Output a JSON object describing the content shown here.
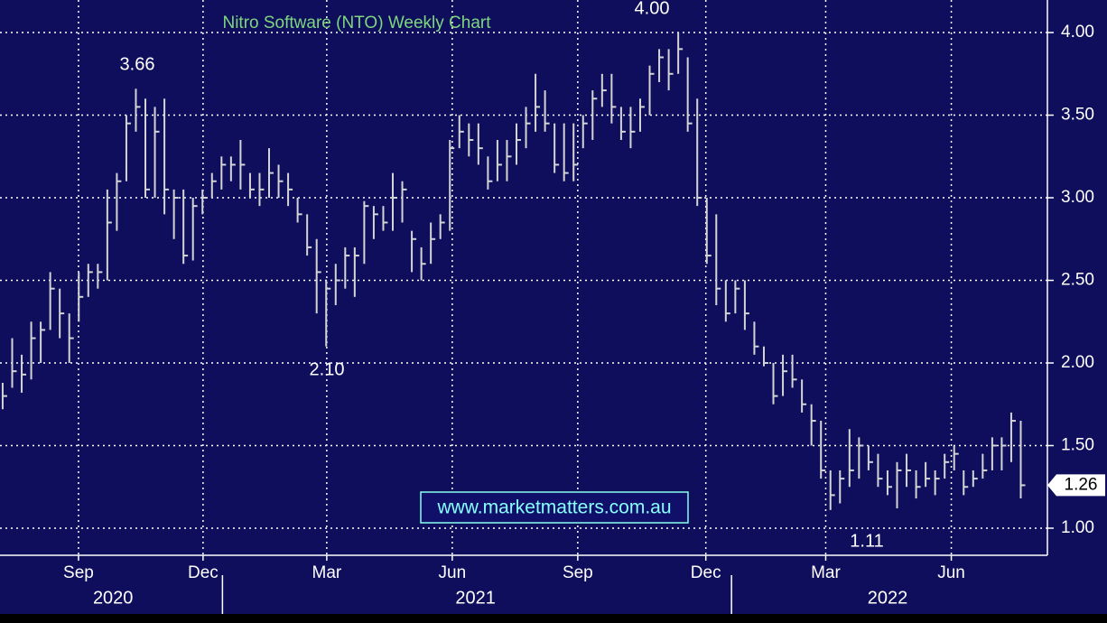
{
  "chart_data": {
    "type": "hlc",
    "title": "Nitro Software (NTO) Weekly Chart",
    "watermark": "www.marketmatters.com.au",
    "annotations": [
      "3.66",
      "2.10",
      "4.00",
      "1.11"
    ],
    "color": "#d4d4d4",
    "grid": true,
    "x": [
      0,
      1,
      2,
      3,
      4,
      5,
      6,
      7,
      8,
      9,
      10,
      11,
      12,
      13,
      14,
      15,
      16,
      17,
      18,
      19,
      20,
      21,
      22,
      23,
      24,
      25,
      26,
      27,
      28,
      29,
      30,
      31,
      32,
      33,
      34,
      35,
      36,
      37,
      38,
      39,
      40,
      41,
      42,
      43,
      44,
      45,
      46,
      47,
      48,
      49,
      50,
      51,
      52,
      53,
      54,
      55,
      56,
      57,
      58,
      59,
      60,
      61,
      62,
      63,
      64,
      65,
      66,
      67,
      68,
      69,
      70,
      71,
      72,
      73,
      74,
      75,
      76,
      77,
      78,
      79,
      80,
      81,
      82,
      83,
      84,
      85,
      86,
      87,
      88,
      89,
      90,
      91,
      92,
      93,
      94,
      95,
      96,
      97,
      98,
      99,
      100,
      101,
      102,
      103,
      104,
      105,
      106,
      107
    ],
    "high": [
      1.88,
      2.15,
      2.05,
      2.25,
      2.25,
      2.55,
      2.45,
      2.3,
      2.55,
      2.6,
      2.6,
      3.05,
      3.15,
      3.5,
      3.66,
      3.6,
      3.55,
      3.6,
      3.05,
      3.05,
      3.0,
      3.05,
      3.15,
      3.25,
      3.25,
      3.35,
      3.15,
      3.15,
      3.3,
      3.2,
      3.15,
      3.0,
      2.9,
      2.75,
      2.5,
      2.6,
      2.7,
      2.7,
      2.98,
      2.95,
      2.95,
      3.15,
      3.1,
      2.8,
      2.7,
      2.85,
      2.9,
      3.35,
      3.5,
      3.45,
      3.45,
      3.25,
      3.35,
      3.35,
      3.45,
      3.55,
      3.75,
      3.65,
      3.45,
      3.45,
      3.45,
      3.5,
      3.65,
      3.75,
      3.75,
      3.55,
      3.55,
      3.6,
      3.8,
      3.9,
      3.9,
      4.0,
      3.85,
      3.6,
      3.0,
      2.9,
      2.5,
      2.5,
      2.5,
      2.25,
      2.1,
      2.0,
      2.05,
      2.05,
      1.9,
      1.75,
      1.65,
      1.35,
      1.35,
      1.6,
      1.55,
      1.5,
      1.45,
      1.35,
      1.4,
      1.45,
      1.35,
      1.4,
      1.35,
      1.45,
      1.5,
      1.35,
      1.35,
      1.45,
      1.55,
      1.55,
      1.7,
      1.65
    ],
    "low": [
      1.72,
      1.85,
      1.82,
      1.9,
      2.0,
      2.2,
      2.15,
      2.0,
      2.25,
      2.4,
      2.45,
      2.5,
      2.8,
      3.1,
      3.4,
      3.0,
      3.0,
      2.9,
      2.75,
      2.6,
      2.62,
      2.9,
      3.0,
      3.05,
      3.1,
      3.05,
      3.0,
      2.95,
      3.0,
      3.0,
      2.95,
      2.85,
      2.65,
      2.3,
      2.1,
      2.35,
      2.45,
      2.4,
      2.6,
      2.75,
      2.8,
      2.8,
      2.85,
      2.55,
      2.5,
      2.6,
      2.75,
      2.8,
      3.3,
      3.25,
      3.2,
      3.05,
      3.1,
      3.1,
      3.2,
      3.3,
      3.4,
      3.4,
      3.15,
      3.1,
      3.1,
      3.3,
      3.35,
      3.55,
      3.45,
      3.35,
      3.3,
      3.4,
      3.5,
      3.7,
      3.65,
      3.75,
      3.4,
      2.95,
      2.6,
      2.35,
      2.25,
      2.3,
      2.2,
      2.05,
      1.98,
      1.75,
      1.8,
      1.85,
      1.7,
      1.5,
      1.3,
      1.11,
      1.15,
      1.25,
      1.3,
      1.35,
      1.25,
      1.2,
      1.12,
      1.25,
      1.18,
      1.25,
      1.2,
      1.3,
      1.35,
      1.2,
      1.25,
      1.3,
      1.35,
      1.35,
      1.4,
      1.18
    ],
    "close": [
      1.8,
      1.95,
      1.93,
      2.15,
      2.2,
      2.45,
      2.3,
      2.15,
      2.4,
      2.55,
      2.55,
      2.85,
      3.1,
      3.45,
      3.55,
      3.05,
      3.4,
      3.05,
      3.0,
      2.65,
      2.95,
      3.0,
      3.1,
      3.2,
      3.2,
      3.2,
      3.05,
      3.05,
      3.15,
      3.1,
      3.05,
      2.9,
      2.7,
      2.55,
      2.45,
      2.5,
      2.65,
      2.65,
      2.95,
      2.9,
      2.85,
      3.0,
      3.05,
      2.75,
      2.6,
      2.75,
      2.85,
      3.3,
      3.4,
      3.35,
      3.3,
      3.1,
      3.2,
      3.25,
      3.35,
      3.45,
      3.55,
      3.45,
      3.2,
      3.15,
      3.2,
      3.45,
      3.6,
      3.65,
      3.55,
      3.4,
      3.4,
      3.55,
      3.75,
      3.85,
      3.75,
      3.9,
      3.45,
      3.0,
      2.65,
      2.45,
      2.3,
      2.45,
      2.3,
      2.1,
      2.0,
      1.8,
      1.95,
      1.9,
      1.75,
      1.65,
      1.35,
      1.2,
      1.3,
      1.35,
      1.5,
      1.4,
      1.3,
      1.25,
      1.35,
      1.35,
      1.25,
      1.3,
      1.3,
      1.4,
      1.45,
      1.25,
      1.3,
      1.35,
      1.5,
      1.5,
      1.65,
      1.26
    ],
    "xlim": [
      -0.28,
      109.8
    ],
    "xticks": [
      {
        "value": 7.97,
        "label": "Sep"
      },
      {
        "value": 21.06,
        "label": "Dec"
      },
      {
        "value": 34.06,
        "label": "Mar"
      },
      {
        "value": 47.25,
        "label": "Jun"
      },
      {
        "value": 60.44,
        "label": "Sep"
      },
      {
        "value": 73.9,
        "label": "Dec"
      },
      {
        "value": 86.5,
        "label": "Mar"
      },
      {
        "value": 99.7,
        "label": "Jun"
      }
    ],
    "year_labels": [
      {
        "value": 11.6,
        "label": "2020"
      },
      {
        "value": 49.7,
        "label": "2021"
      },
      {
        "value": 93,
        "label": "2022"
      }
    ],
    "year_breaks": [
      23.1,
      76.6
    ],
    "ylim": [
      0.836,
      4.197
    ],
    "yticks": [
      {
        "value": 1,
        "label": "1.00"
      },
      {
        "value": 1.5,
        "label": "1.50"
      },
      {
        "value": 2,
        "label": "2.00"
      },
      {
        "value": 2.5,
        "label": "2.50"
      },
      {
        "value": 3,
        "label": "3.00"
      },
      {
        "value": 3.5,
        "label": "3.50"
      },
      {
        "value": 4,
        "label": "4.00"
      }
    ]
  }
}
